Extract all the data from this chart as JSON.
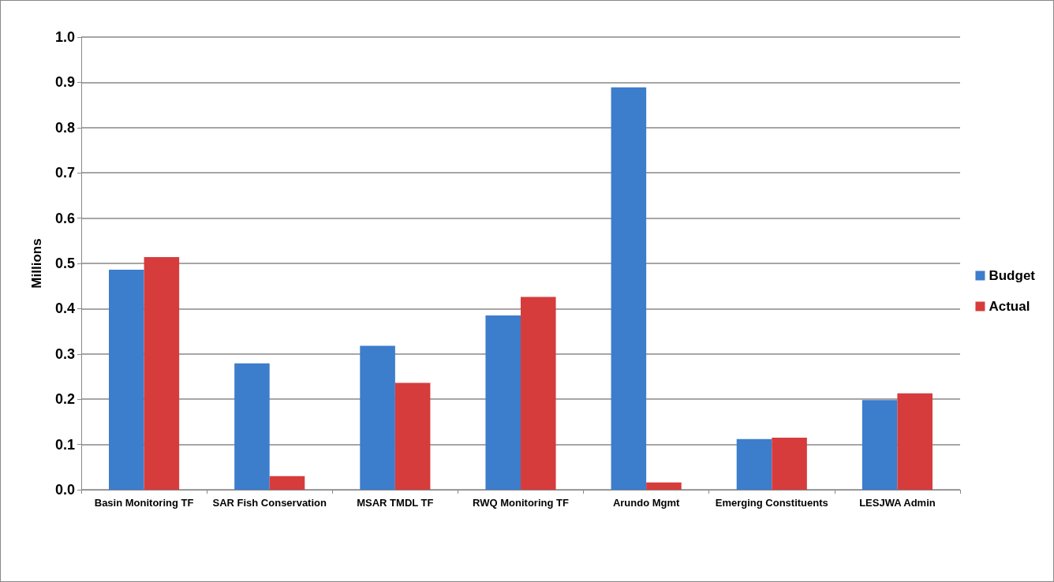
{
  "chart_data": {
    "type": "bar",
    "ylabel": "Millions",
    "categories": [
      "Basin Monitoring TF",
      "SAR Fish Conservation",
      "MSAR TMDL TF",
      "RWQ Monitoring TF",
      "Arundo Mgmt",
      "Emerging Constituents",
      "LESJWA Admin"
    ],
    "series": [
      {
        "name": "Budget",
        "color": "#3c7dcc",
        "values": [
          0.486,
          0.279,
          0.318,
          0.385,
          0.889,
          0.112,
          0.198
        ]
      },
      {
        "name": "Actual",
        "color": "#d63c3c",
        "values": [
          0.514,
          0.03,
          0.236,
          0.426,
          0.016,
          0.115,
          0.213
        ]
      }
    ],
    "ylim": [
      0,
      1
    ],
    "yticks": [
      {
        "value": 0,
        "label": "0.0"
      },
      0.1,
      0.2,
      0.3,
      0.4,
      0.5,
      0.6,
      0.7,
      0.8,
      0.9,
      {
        "value": 1,
        "label": "1.0"
      }
    ],
    "grid": "y",
    "legend": "right"
  }
}
